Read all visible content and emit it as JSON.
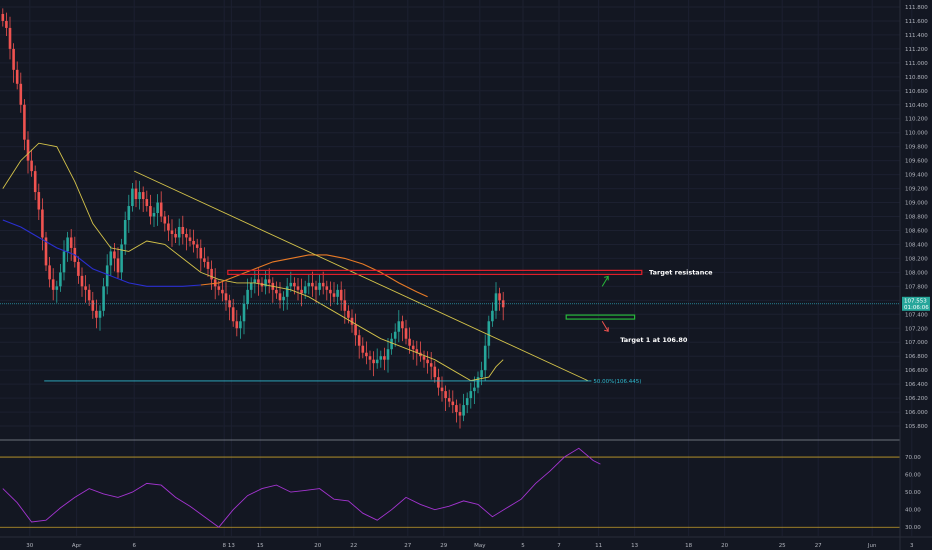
{
  "chart_data": {
    "type": "candlestick",
    "colors": {
      "background": "#131722",
      "up": "#26a69a",
      "down": "#ef5350",
      "ma_fast": "#d4c34a",
      "ma_slow": "#e87a26",
      "ma_slow_early": "#2a2fd0",
      "resistance": "#e0202a",
      "support": "#27b83a",
      "fib": "#2fb7cc",
      "rsi": "#a334d0",
      "rsi_band": "#c8a02a",
      "separator": "#8a8f99"
    },
    "price_axis": {
      "range": [
        105.6,
        111.9
      ],
      "ticks": [
        "111.800",
        "111.600",
        "111.400",
        "111.200",
        "111.000",
        "110.800",
        "110.600",
        "110.400",
        "110.200",
        "110.000",
        "109.800",
        "109.600",
        "109.400",
        "109.200",
        "109.000",
        "108.800",
        "108.600",
        "108.400",
        "108.200",
        "108.000",
        "107.800",
        "107.600",
        "107.400",
        "107.200",
        "107.000",
        "106.800",
        "106.600",
        "106.400",
        "106.200",
        "106.000",
        "105.800"
      ],
      "tick_values": [
        111.8,
        111.6,
        111.4,
        111.2,
        111.0,
        110.8,
        110.6,
        110.4,
        110.2,
        110.0,
        109.8,
        109.6,
        109.4,
        109.2,
        109.0,
        108.8,
        108.6,
        108.4,
        108.2,
        108.0,
        107.8,
        107.6,
        107.4,
        107.2,
        107.0,
        106.8,
        106.6,
        106.4,
        106.2,
        106.0,
        105.8
      ],
      "last_price_label": "107.553",
      "countdown_label": "01:06:06",
      "last_price": 107.55
    },
    "rsi_axis": {
      "range": [
        25,
        78
      ],
      "ticks": [
        "70.00",
        "60.00",
        "50.00",
        "40.00",
        "30.00"
      ],
      "tick_values": [
        70,
        60,
        50,
        40,
        30
      ],
      "upper_band": 70,
      "lower_band": 30
    },
    "x_axis": {
      "ticks": [
        {
          "label": "30",
          "index": 8
        },
        {
          "label": "Apr",
          "index": 21
        },
        {
          "label": "6",
          "index": 37
        },
        {
          "label": "8",
          "index": 62
        },
        {
          "label": "13",
          "index": 64
        },
        {
          "label": "15",
          "index": 72
        },
        {
          "label": "20",
          "index": 88
        },
        {
          "label": "22",
          "index": 98
        },
        {
          "label": "27",
          "index": 113
        },
        {
          "label": "29",
          "index": 123
        },
        {
          "label": "May",
          "index": 133
        },
        {
          "label": "5",
          "index": 145
        },
        {
          "label": "7",
          "index": 155
        },
        {
          "label": "11",
          "index": 166
        },
        {
          "label": "13",
          "index": 176
        },
        {
          "label": "18",
          "index": 191
        },
        {
          "label": "20",
          "index": 201
        },
        {
          "label": "25",
          "index": 217
        },
        {
          "label": "27",
          "index": 227
        },
        {
          "label": "Jun",
          "index": 242
        },
        {
          "label": "3",
          "index": 253
        }
      ]
    },
    "candles_close": [
      111.6,
      111.5,
      111.2,
      110.9,
      110.7,
      110.4,
      109.9,
      109.6,
      109.45,
      109.15,
      108.9,
      108.5,
      108.1,
      107.9,
      107.75,
      107.8,
      108.0,
      108.3,
      108.5,
      108.35,
      108.15,
      107.95,
      107.8,
      107.75,
      107.6,
      107.45,
      107.35,
      107.45,
      107.8,
      108.1,
      108.3,
      108.2,
      108.0,
      108.4,
      108.75,
      108.95,
      109.2,
      109.05,
      109.15,
      109.05,
      108.95,
      108.8,
      108.85,
      109.0,
      108.8,
      108.7,
      108.6,
      108.55,
      108.5,
      108.65,
      108.55,
      108.5,
      108.45,
      108.4,
      108.35,
      108.2,
      108.15,
      108.05,
      107.9,
      107.8,
      107.75,
      107.7,
      107.6,
      107.5,
      107.3,
      107.2,
      107.3,
      107.55,
      107.75,
      107.85,
      107.9,
      107.85,
      107.8,
      107.9,
      107.85,
      107.75,
      107.7,
      107.6,
      107.65,
      107.8,
      107.85,
      107.8,
      107.75,
      107.7,
      107.8,
      107.85,
      107.8,
      107.75,
      107.85,
      107.8,
      107.75,
      107.7,
      107.65,
      107.75,
      107.6,
      107.45,
      107.35,
      107.25,
      107.1,
      106.95,
      106.85,
      106.8,
      106.75,
      106.7,
      106.75,
      106.8,
      106.75,
      106.9,
      107.05,
      107.15,
      107.3,
      107.2,
      107.05,
      106.95,
      106.9,
      106.85,
      106.8,
      106.75,
      106.7,
      106.65,
      106.5,
      106.35,
      106.3,
      106.2,
      106.15,
      106.1,
      106.0,
      105.95,
      106.1,
      106.2,
      106.3,
      106.35,
      106.5,
      106.6,
      106.95,
      107.3,
      107.45,
      107.7,
      107.6,
      107.5
    ],
    "ma_fast": [
      [
        0,
        109.2
      ],
      [
        5,
        109.6
      ],
      [
        10,
        109.85
      ],
      [
        15,
        109.8
      ],
      [
        20,
        109.3
      ],
      [
        25,
        108.7
      ],
      [
        30,
        108.35
      ],
      [
        35,
        108.3
      ],
      [
        40,
        108.45
      ],
      [
        45,
        108.4
      ],
      [
        50,
        108.2
      ],
      [
        55,
        108.0
      ],
      [
        60,
        107.9
      ],
      [
        65,
        107.85
      ],
      [
        70,
        107.85
      ],
      [
        75,
        107.8
      ],
      [
        80,
        107.75
      ],
      [
        85,
        107.65
      ],
      [
        90,
        107.5
      ],
      [
        95,
        107.35
      ],
      [
        100,
        107.2
      ],
      [
        105,
        107.05
      ],
      [
        110,
        106.95
      ],
      [
        115,
        106.85
      ],
      [
        120,
        106.75
      ],
      [
        125,
        106.6
      ],
      [
        130,
        106.45
      ],
      [
        135,
        106.5
      ],
      [
        137,
        106.65
      ],
      [
        139,
        106.75
      ]
    ],
    "ma_slow": [
      [
        0,
        108.75
      ],
      [
        5,
        108.65
      ],
      [
        10,
        108.5
      ],
      [
        15,
        108.35
      ],
      [
        20,
        108.25
      ],
      [
        25,
        108.05
      ],
      [
        30,
        107.95
      ],
      [
        35,
        107.85
      ],
      [
        40,
        107.8
      ],
      [
        45,
        107.8
      ],
      [
        50,
        107.8
      ],
      [
        55,
        107.82
      ],
      [
        60,
        107.85
      ],
      [
        65,
        107.95
      ],
      [
        70,
        108.05
      ],
      [
        75,
        108.15
      ],
      [
        80,
        108.2
      ],
      [
        85,
        108.25
      ],
      [
        90,
        108.25
      ],
      [
        95,
        108.2
      ],
      [
        100,
        108.12
      ],
      [
        105,
        108.0
      ],
      [
        110,
        107.85
      ],
      [
        115,
        107.72
      ],
      [
        118,
        107.65
      ]
    ],
    "rsi": [
      [
        0,
        52
      ],
      [
        4,
        44
      ],
      [
        8,
        33
      ],
      [
        12,
        34
      ],
      [
        16,
        41
      ],
      [
        20,
        47
      ],
      [
        24,
        52
      ],
      [
        28,
        49
      ],
      [
        32,
        47
      ],
      [
        36,
        50
      ],
      [
        40,
        55
      ],
      [
        44,
        54
      ],
      [
        48,
        47
      ],
      [
        52,
        42
      ],
      [
        56,
        36
      ],
      [
        60,
        30
      ],
      [
        64,
        40
      ],
      [
        68,
        48
      ],
      [
        72,
        52
      ],
      [
        76,
        54
      ],
      [
        80,
        50
      ],
      [
        84,
        51
      ],
      [
        88,
        52
      ],
      [
        92,
        46
      ],
      [
        96,
        45
      ],
      [
        100,
        38
      ],
      [
        104,
        34
      ],
      [
        108,
        40
      ],
      [
        112,
        47
      ],
      [
        116,
        43
      ],
      [
        120,
        40
      ],
      [
        124,
        42
      ],
      [
        128,
        45
      ],
      [
        132,
        43
      ],
      [
        136,
        36
      ],
      [
        140,
        41
      ],
      [
        144,
        46
      ],
      [
        148,
        55
      ],
      [
        152,
        62
      ],
      [
        156,
        70
      ],
      [
        160,
        75
      ],
      [
        164,
        68
      ],
      [
        166,
        66
      ]
    ],
    "annotations": {
      "target_resistance": "Target resistance",
      "target_1": "Target 1 at 106.80",
      "fib_label": "50.00%(106.445)",
      "resistance_price": 108.0,
      "support_price": 107.36,
      "fib_price": 106.445
    }
  }
}
